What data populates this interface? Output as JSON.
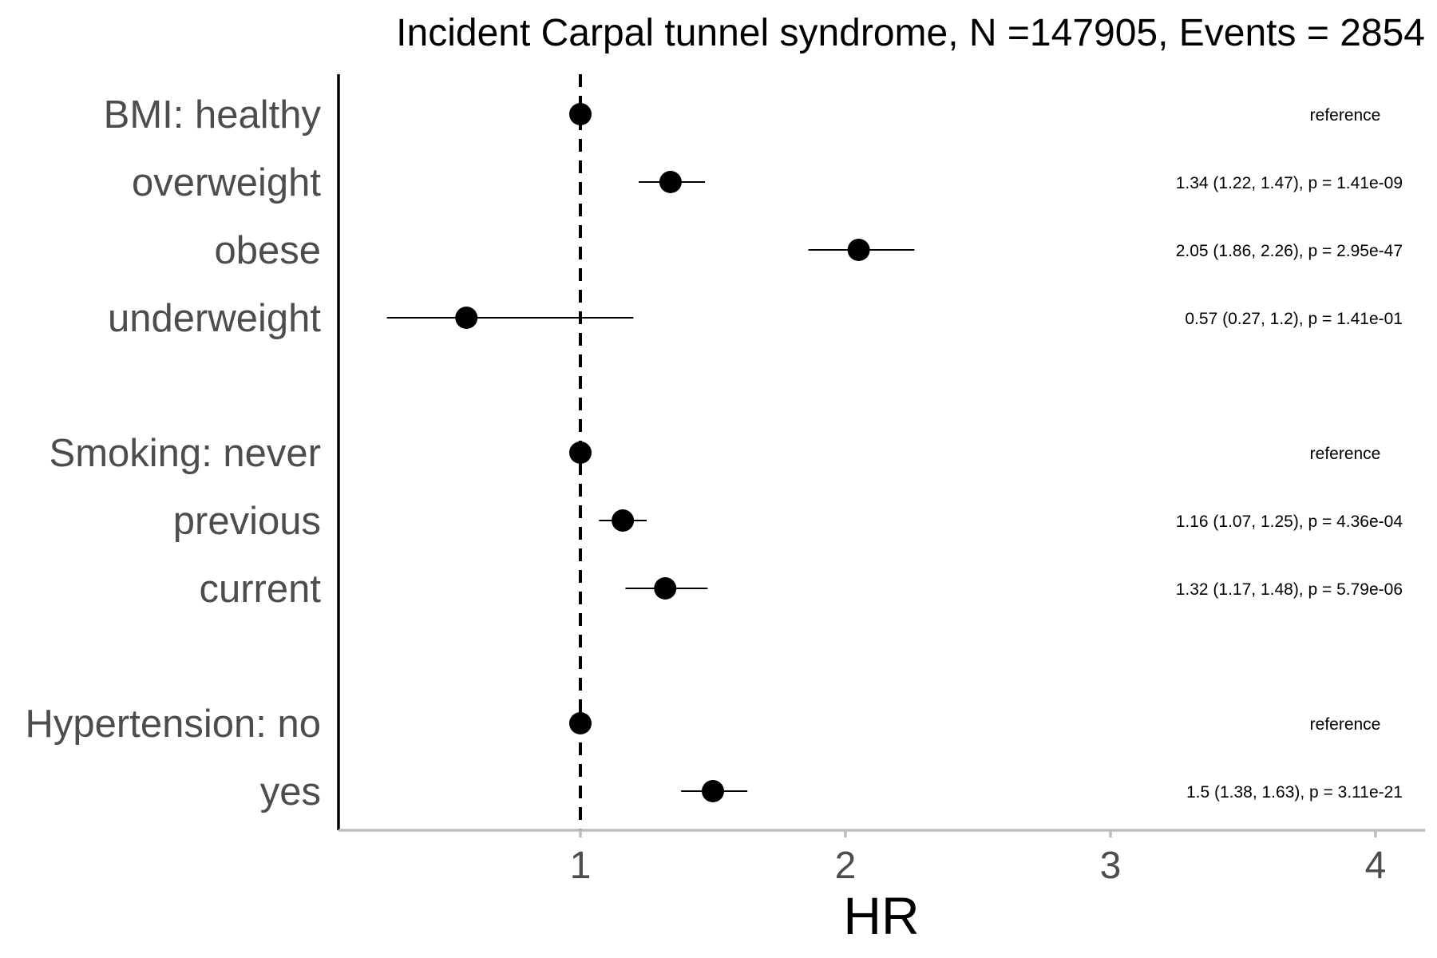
{
  "chart_data": {
    "type": "forest",
    "title": "Incident Carpal tunnel syndrome, N =147905, Events = 2854",
    "xlabel": "HR",
    "ylabel": "",
    "xlim": [
      0.1,
      4.2
    ],
    "xticks": [
      1,
      2,
      3,
      4
    ],
    "xtick_labels": [
      "1",
      "2",
      "3",
      "4"
    ],
    "reference_line": 1,
    "grid": false,
    "legend": "none",
    "rows": [
      {
        "label": "BMI: healthy",
        "hr": 1.0,
        "lower": 1.0,
        "upper": 1.0,
        "annotation": "reference",
        "is_reference": true
      },
      {
        "label": "overweight",
        "hr": 1.34,
        "lower": 1.22,
        "upper": 1.47,
        "annotation": "1.34 (1.22, 1.47), p = 1.41e-09",
        "is_reference": false
      },
      {
        "label": "obese",
        "hr": 2.05,
        "lower": 1.86,
        "upper": 2.26,
        "annotation": "2.05 (1.86, 2.26), p = 2.95e-47",
        "is_reference": false
      },
      {
        "label": "underweight",
        "hr": 0.57,
        "lower": 0.27,
        "upper": 1.2,
        "annotation": "0.57 (0.27, 1.2), p = 1.41e-01",
        "is_reference": false
      },
      {
        "label": "Smoking: never",
        "hr": 1.0,
        "lower": 1.0,
        "upper": 1.0,
        "annotation": "reference",
        "is_reference": true
      },
      {
        "label": "previous",
        "hr": 1.16,
        "lower": 1.07,
        "upper": 1.25,
        "annotation": "1.16 (1.07, 1.25), p = 4.36e-04",
        "is_reference": false
      },
      {
        "label": "current",
        "hr": 1.32,
        "lower": 1.17,
        "upper": 1.48,
        "annotation": "1.32 (1.17, 1.48), p = 5.79e-06",
        "is_reference": false
      },
      {
        "label": "Hypertension: no",
        "hr": 1.0,
        "lower": 1.0,
        "upper": 1.0,
        "annotation": "reference",
        "is_reference": true
      },
      {
        "label": "yes",
        "hr": 1.5,
        "lower": 1.38,
        "upper": 1.63,
        "annotation": "1.5 (1.38, 1.63), p = 3.11e-21",
        "is_reference": false
      }
    ]
  }
}
